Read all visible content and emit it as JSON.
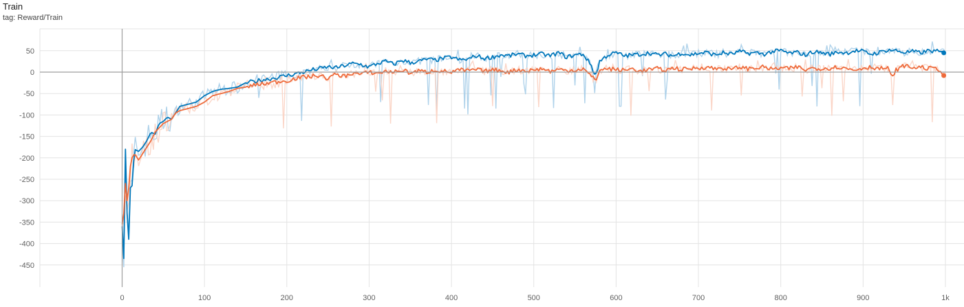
{
  "title": "Train",
  "tag": "tag: Reward/Train",
  "chart_data": {
    "type": "line",
    "title": "Train",
    "xlabel": "",
    "ylabel": "",
    "xlim": [
      -100,
      1000
    ],
    "ylim": [
      -500,
      75
    ],
    "grid": true,
    "x_ticks": [
      0,
      100,
      200,
      300,
      400,
      500,
      600,
      700,
      800,
      900,
      1000
    ],
    "x_tick_labels": [
      "0",
      "100",
      "200",
      "300",
      "400",
      "500",
      "600",
      "700",
      "800",
      "900",
      "1k"
    ],
    "y_ticks": [
      50,
      0,
      -50,
      -100,
      -150,
      -200,
      -250,
      -300,
      -350,
      -400,
      -450
    ],
    "y_tick_labels": [
      "50",
      "0",
      "-50",
      "-100",
      "-150",
      "-200",
      "-250",
      "-300",
      "-350",
      "-400",
      "-450"
    ],
    "series": [
      {
        "color": "#0077bb",
        "raw_color": "#a6cde8",
        "x": [
          0,
          2,
          4,
          6,
          8,
          10,
          12,
          15,
          20,
          25,
          30,
          35,
          40,
          45,
          50,
          55,
          60,
          65,
          70,
          80,
          90,
          100,
          110,
          120,
          130,
          140,
          150,
          160,
          170,
          180,
          190,
          200,
          210,
          220,
          230,
          240,
          250,
          260,
          270,
          280,
          290,
          300,
          310,
          320,
          330,
          340,
          350,
          360,
          370,
          380,
          390,
          400,
          410,
          420,
          430,
          440,
          450,
          460,
          470,
          480,
          490,
          500,
          510,
          520,
          530,
          540,
          550,
          560,
          570,
          575,
          580,
          590,
          600,
          610,
          620,
          630,
          640,
          650,
          660,
          670,
          680,
          690,
          700,
          710,
          720,
          730,
          740,
          750,
          760,
          770,
          780,
          790,
          800,
          810,
          820,
          830,
          840,
          850,
          860,
          870,
          880,
          890,
          900,
          910,
          920,
          930,
          940,
          950,
          960,
          970,
          980,
          990,
          998
        ],
        "y": [
          -360,
          -435,
          -180,
          -330,
          -390,
          -270,
          -265,
          -180,
          -185,
          -175,
          -160,
          -140,
          -145,
          -120,
          -115,
          -105,
          -110,
          -95,
          -80,
          -75,
          -70,
          -55,
          -45,
          -40,
          -38,
          -35,
          -25,
          -22,
          -18,
          -15,
          -12,
          -8,
          -4,
          0,
          5,
          8,
          12,
          10,
          15,
          20,
          18,
          12,
          20,
          25,
          18,
          28,
          22,
          25,
          30,
          28,
          32,
          35,
          28,
          30,
          38,
          32,
          35,
          40,
          38,
          42,
          38,
          40,
          42,
          38,
          45,
          35,
          40,
          42,
          15,
          -10,
          25,
          40,
          45,
          38,
          40,
          42,
          45,
          40,
          42,
          38,
          45,
          40,
          44,
          46,
          40,
          45,
          42,
          48,
          44,
          45,
          42,
          48,
          50,
          44,
          46,
          40,
          48,
          45,
          42,
          47,
          45,
          50,
          48,
          42,
          46,
          52,
          50,
          46,
          48,
          45,
          50,
          48,
          45
        ],
        "raw_y_high": [
          -200,
          -180,
          -170,
          -150,
          -120,
          -100,
          -90,
          -60,
          -45,
          -30,
          -10,
          0,
          20,
          40,
          50,
          60,
          62,
          65,
          68,
          70,
          70
        ],
        "raw_y_low": [
          -470,
          -400,
          -280,
          -250,
          -230,
          -180,
          -150,
          -100,
          -90,
          -110,
          -80,
          -70,
          -100,
          -90,
          -110,
          -120,
          -105,
          -90,
          -120,
          -100,
          -120
        ],
        "raw_x": [
          0,
          5,
          10,
          20,
          30,
          50,
          70,
          100,
          150,
          200,
          250,
          300,
          350,
          400,
          500,
          600,
          700,
          800,
          850,
          900,
          1000
        ],
        "end_value": 45
      },
      {
        "color": "#ee6a3a",
        "raw_color": "#fbd1c2",
        "x": [
          0,
          2,
          4,
          6,
          8,
          10,
          12,
          15,
          20,
          25,
          30,
          35,
          40,
          45,
          50,
          55,
          60,
          65,
          70,
          80,
          90,
          100,
          110,
          120,
          130,
          140,
          150,
          160,
          170,
          180,
          190,
          200,
          210,
          220,
          230,
          240,
          250,
          260,
          270,
          280,
          290,
          300,
          310,
          320,
          330,
          340,
          350,
          360,
          370,
          380,
          390,
          400,
          410,
          420,
          430,
          440,
          450,
          460,
          470,
          480,
          490,
          500,
          510,
          520,
          530,
          540,
          550,
          560,
          570,
          575,
          580,
          590,
          600,
          610,
          620,
          630,
          640,
          650,
          660,
          670,
          680,
          690,
          700,
          710,
          720,
          730,
          740,
          750,
          760,
          770,
          780,
          790,
          800,
          810,
          820,
          830,
          840,
          850,
          860,
          870,
          880,
          890,
          900,
          910,
          920,
          930,
          935,
          940,
          950,
          960,
          970,
          980,
          990,
          998
        ],
        "y": [
          -355,
          -330,
          -260,
          -300,
          -270,
          -220,
          -200,
          -190,
          -205,
          -190,
          -175,
          -160,
          -140,
          -130,
          -120,
          -115,
          -110,
          -95,
          -90,
          -85,
          -80,
          -70,
          -55,
          -50,
          -45,
          -38,
          -35,
          -30,
          -28,
          -25,
          -22,
          -20,
          -15,
          -12,
          -10,
          -8,
          -15,
          -5,
          -10,
          -2,
          -5,
          0,
          -3,
          2,
          0,
          5,
          -2,
          3,
          0,
          5,
          2,
          0,
          5,
          3,
          6,
          2,
          5,
          4,
          0,
          6,
          3,
          5,
          8,
          2,
          6,
          4,
          5,
          8,
          -10,
          -20,
          5,
          8,
          6,
          4,
          8,
          2,
          6,
          8,
          4,
          10,
          6,
          8,
          10,
          12,
          8,
          10,
          6,
          12,
          8,
          10,
          12,
          6,
          10,
          8,
          12,
          5,
          10,
          8,
          10,
          12,
          8,
          5,
          10,
          12,
          8,
          10,
          -15,
          5,
          15,
          10,
          12,
          8,
          10,
          -8
        ],
        "end_value": -8
      }
    ]
  }
}
